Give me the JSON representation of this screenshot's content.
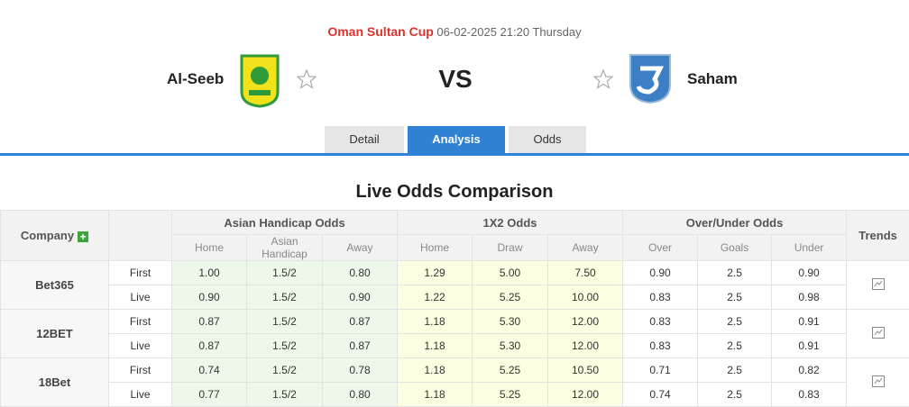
{
  "header": {
    "competition": "Oman Sultan Cup",
    "datetime": "06-02-2025 21:20 Thursday",
    "home_team": "Al-Seeb",
    "vs": "VS",
    "away_team": "Saham"
  },
  "tabs": [
    "Detail",
    "Analysis",
    "Odds"
  ],
  "section_title": "Live Odds Comparison",
  "table": {
    "columns": {
      "company": "Company",
      "asian_handicap": "Asian Handicap Odds",
      "x12": "1X2 Odds",
      "over_under": "Over/Under Odds",
      "trends": "Trends"
    },
    "subcolumns": [
      "Home",
      "Asian Handicap",
      "Away",
      "Home",
      "Draw",
      "Away",
      "Over",
      "Goals",
      "Under"
    ],
    "companies": [
      {
        "name": "Bet365",
        "rows": [
          {
            "type": "First",
            "values": [
              "1.00",
              "1.5/2",
              "0.80",
              "1.29",
              "5.00",
              "7.50",
              "0.90",
              "2.5",
              "0.90"
            ]
          },
          {
            "type": "Live",
            "values": [
              "0.90",
              "1.5/2",
              "0.90",
              "1.22",
              "5.25",
              "10.00",
              "0.83",
              "2.5",
              "0.98"
            ]
          }
        ]
      },
      {
        "name": "12BET",
        "rows": [
          {
            "type": "First",
            "values": [
              "0.87",
              "1.5/2",
              "0.87",
              "1.18",
              "5.30",
              "12.00",
              "0.83",
              "2.5",
              "0.91"
            ]
          },
          {
            "type": "Live",
            "values": [
              "0.87",
              "1.5/2",
              "0.87",
              "1.18",
              "5.30",
              "12.00",
              "0.83",
              "2.5",
              "0.91"
            ]
          }
        ]
      },
      {
        "name": "18Bet",
        "rows": [
          {
            "type": "First",
            "values": [
              "0.74",
              "1.5/2",
              "0.78",
              "1.18",
              "5.25",
              "10.50",
              "0.71",
              "2.5",
              "0.82"
            ]
          },
          {
            "type": "Live",
            "values": [
              "0.77",
              "1.5/2",
              "0.80",
              "1.18",
              "5.25",
              "12.00",
              "0.74",
              "2.5",
              "0.83"
            ]
          }
        ]
      }
    ]
  }
}
